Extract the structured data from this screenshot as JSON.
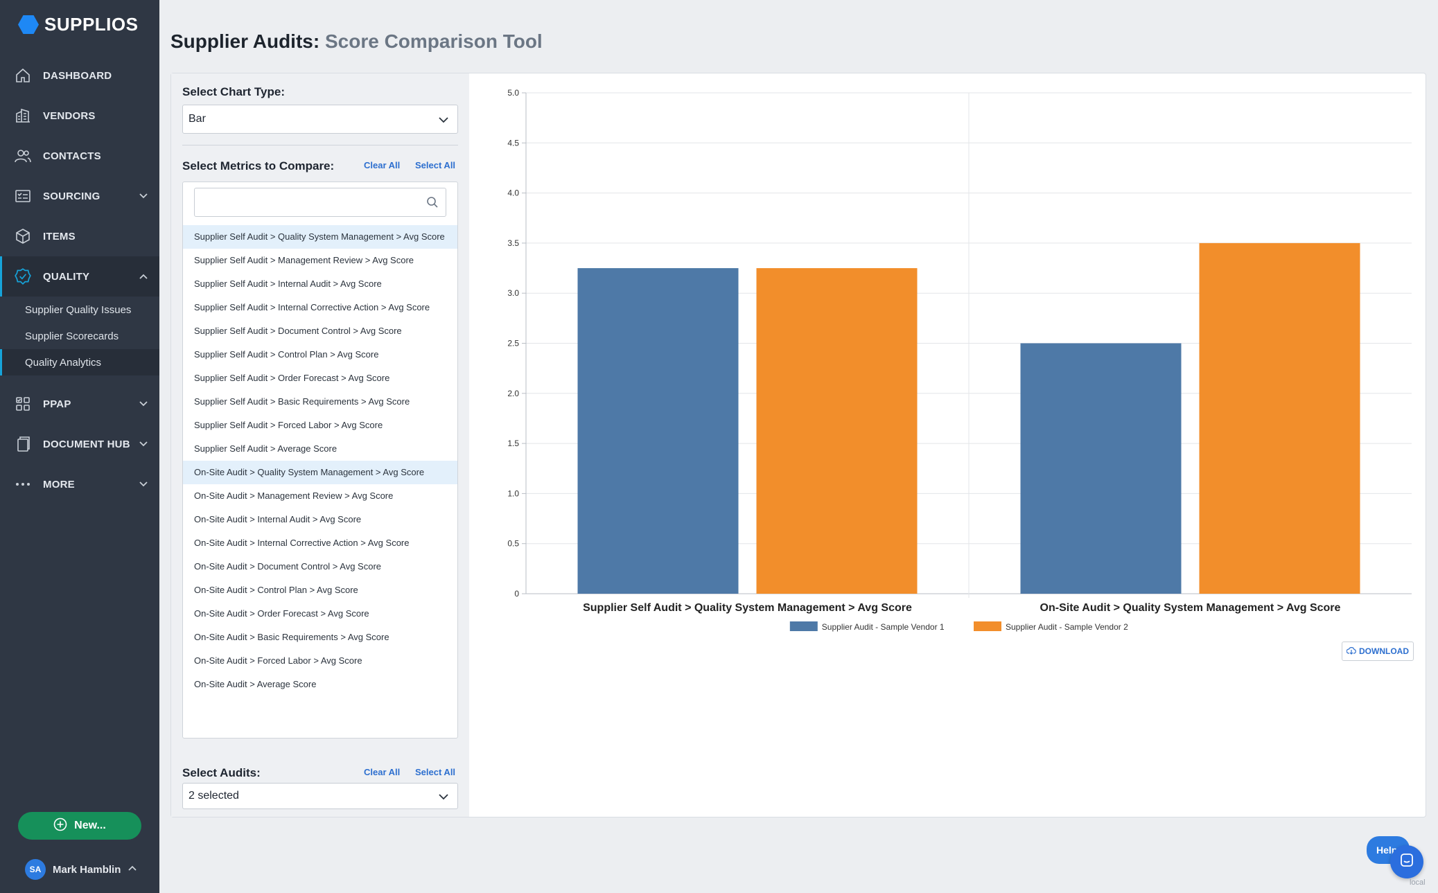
{
  "brand": {
    "name": "SUPPLIOS",
    "accent": "#1e88f5"
  },
  "nav": {
    "dashboard": "DASHBOARD",
    "vendors": "VENDORS",
    "contacts": "CONTACTS",
    "sourcing": "SOURCING",
    "items": "ITEMS",
    "quality": "QUALITY",
    "quality_sub": [
      "Supplier Quality Issues",
      "Supplier Scorecards",
      "Quality Analytics"
    ],
    "ppap": "PPAP",
    "document_hub": "DOCUMENT HUB",
    "more": "MORE"
  },
  "new_button": "New...",
  "user": {
    "initials": "SA",
    "name": "Mark Hamblin"
  },
  "page": {
    "title": "Supplier Audits:",
    "subtitle": "Score Comparison Tool"
  },
  "controls": {
    "chart_type_label": "Select Chart Type:",
    "chart_type_value": "Bar",
    "metrics_label": "Select Metrics to Compare:",
    "clear_all": "Clear All",
    "select_all": "Select All",
    "search_placeholder": "",
    "audits_label": "Select Audits:",
    "audits_value": "2 selected"
  },
  "metrics": [
    "Supplier Self Audit > Quality System Management > Avg Score",
    "Supplier Self Audit > Management Review > Avg Score",
    "Supplier Self Audit > Internal Audit > Avg Score",
    "Supplier Self Audit > Internal Corrective Action > Avg Score",
    "Supplier Self Audit > Document Control > Avg Score",
    "Supplier Self Audit > Control Plan > Avg Score",
    "Supplier Self Audit > Order Forecast > Avg Score",
    "Supplier Self Audit > Basic Requirements > Avg Score",
    "Supplier Self Audit > Forced Labor > Avg Score",
    "Supplier Self Audit > Average Score",
    "On-Site Audit > Quality System Management > Avg Score",
    "On-Site Audit > Management Review > Avg Score",
    "On-Site Audit > Internal Audit > Avg Score",
    "On-Site Audit > Internal Corrective Action > Avg Score",
    "On-Site Audit > Document Control > Avg Score",
    "On-Site Audit > Control Plan > Avg Score",
    "On-Site Audit > Order Forecast > Avg Score",
    "On-Site Audit > Basic Requirements > Avg Score",
    "On-Site Audit > Forced Labor > Avg Score",
    "On-Site Audit > Average Score"
  ],
  "selected_metrics": [
    0,
    10
  ],
  "chart_data": {
    "type": "bar",
    "categories": [
      "Supplier Self Audit > Quality System Management > Avg Score",
      "On-Site Audit > Quality System Management > Avg Score"
    ],
    "series": [
      {
        "name": "Supplier Audit - Sample Vendor 1",
        "values": [
          3.25,
          2.5
        ],
        "color": "#4e79a7"
      },
      {
        "name": "Supplier Audit - Sample Vendor 2",
        "values": [
          3.25,
          3.5
        ],
        "color": "#f28e2b"
      }
    ],
    "ylim": [
      0,
      5
    ],
    "yticks": [
      "0",
      "0.5",
      "1.0",
      "1.5",
      "2.0",
      "2.5",
      "3.0",
      "3.5",
      "4.0",
      "4.5",
      "5.0"
    ],
    "grid": true,
    "legend": "bottom"
  },
  "download_label": "DOWNLOAD",
  "help_label": "Help",
  "env_label": "local"
}
